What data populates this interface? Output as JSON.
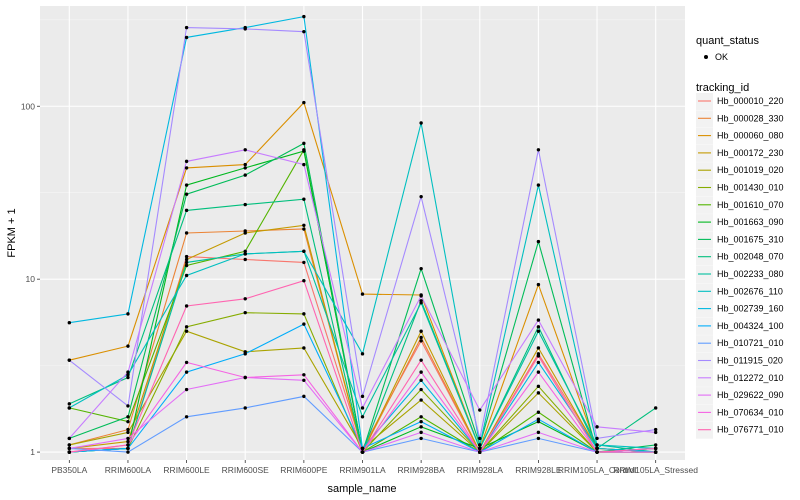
{
  "chart_data": {
    "type": "line",
    "title": "",
    "xlabel": "sample_name",
    "ylabel": "FPKM + 1",
    "y_scale": "log10",
    "ylim": [
      0.9,
      380
    ],
    "y_ticks": [
      1,
      10,
      100
    ],
    "y_tick_labels": [
      "1",
      "10",
      "100"
    ],
    "grid": true,
    "panel_background": "#ebebeb",
    "categories": [
      "PB350LA",
      "RRIM600LA",
      "RRIM600LE",
      "RRIM600SE",
      "RRIM600PE",
      "RRIM901LA",
      "RRIM928BA",
      "RRIM928LA",
      "RRIM928LE",
      "RRIM105LA_Control",
      "RRIM105LA_Stressed"
    ],
    "legend_position": "right",
    "shape_legend": {
      "title": "quant_status",
      "items": [
        "OK"
      ]
    },
    "legend_title": "tracking_id",
    "series": [
      {
        "name": "Hb_000010_220",
        "color": "#F8766D",
        "values": [
          1.05,
          1.05,
          13.5,
          13.0,
          12.5,
          1.05,
          4.4,
          1.0,
          3.7,
          1.05,
          1.0
        ]
      },
      {
        "name": "Hb_000028_330",
        "color": "#EB8335",
        "values": [
          1.1,
          1.35,
          18.5,
          19.0,
          19.5,
          1.0,
          4.6,
          1.0,
          3.6,
          1.0,
          1.05
        ]
      },
      {
        "name": "Hb_000060_080",
        "color": "#DA8F00",
        "values": [
          3.4,
          4.1,
          44.0,
          46.0,
          105.0,
          8.2,
          8.1,
          1.05,
          9.3,
          1.05,
          1.0
        ]
      },
      {
        "name": "Hb_000172_230",
        "color": "#C49A00",
        "values": [
          1.05,
          1.15,
          13.0,
          18.5,
          20.5,
          1.0,
          5.0,
          1.0,
          4.0,
          1.05,
          1.0
        ]
      },
      {
        "name": "Hb_001019_020",
        "color": "#AAA300",
        "values": [
          1.1,
          1.3,
          5.0,
          3.8,
          4.0,
          1.05,
          2.0,
          1.0,
          2.2,
          1.0,
          1.05
        ]
      },
      {
        "name": "Hb_001430_010",
        "color": "#86AC00",
        "values": [
          1.0,
          1.05,
          5.3,
          6.4,
          6.3,
          1.0,
          2.3,
          1.0,
          2.4,
          1.0,
          1.0
        ]
      },
      {
        "name": "Hb_001610_070",
        "color": "#53B400",
        "values": [
          1.8,
          1.5,
          12.0,
          14.5,
          56.0,
          1.0,
          1.6,
          1.0,
          1.7,
          1.0,
          1.0
        ]
      },
      {
        "name": "Hb_001663_090",
        "color": "#00B81F",
        "values": [
          1.0,
          1.05,
          35.0,
          44.0,
          55.0,
          1.0,
          1.4,
          1.05,
          1.5,
          1.0,
          1.0
        ]
      },
      {
        "name": "Hb_001675_310",
        "color": "#00BC59",
        "values": [
          1.2,
          1.6,
          31.0,
          40.0,
          61.0,
          1.0,
          11.5,
          1.1,
          16.5,
          1.0,
          1.1
        ]
      },
      {
        "name": "Hb_002048_070",
        "color": "#00BF7D",
        "values": [
          1.9,
          2.7,
          25.0,
          27.0,
          29.0,
          1.0,
          7.5,
          1.05,
          5.3,
          1.05,
          1.8
        ]
      },
      {
        "name": "Hb_002233_080",
        "color": "#00C09F",
        "values": [
          1.0,
          1.05,
          12.5,
          14.0,
          14.5,
          1.6,
          7.3,
          1.05,
          5.0,
          1.1,
          1.0
        ]
      },
      {
        "name": "Hb_002676_110",
        "color": "#00BFC0",
        "values": [
          1.8,
          2.8,
          10.5,
          14.0,
          14.5,
          3.7,
          80.0,
          1.1,
          35.0,
          1.1,
          1.05
        ]
      },
      {
        "name": "Hb_002739_160",
        "color": "#00B8E0",
        "values": [
          5.6,
          6.3,
          250.0,
          285.0,
          330.0,
          1.05,
          2.6,
          1.0,
          3.3,
          1.05,
          1.0
        ]
      },
      {
        "name": "Hb_004324_100",
        "color": "#00ADFA",
        "values": [
          1.0,
          1.05,
          2.9,
          3.7,
          5.5,
          1.05,
          1.5,
          1.0,
          1.55,
          1.0,
          1.05
        ]
      },
      {
        "name": "Hb_010721_010",
        "color": "#619CFF",
        "values": [
          1.05,
          1.0,
          1.6,
          1.8,
          2.1,
          1.0,
          1.2,
          1.0,
          1.2,
          1.0,
          1.05
        ]
      },
      {
        "name": "Hb_011915_020",
        "color": "#A58AFF",
        "values": [
          3.4,
          1.85,
          285.0,
          280.0,
          270.0,
          2.1,
          30.0,
          1.2,
          56.0,
          1.2,
          1.35
        ]
      },
      {
        "name": "Hb_012272_010",
        "color": "#C77CFF",
        "values": [
          1.2,
          2.9,
          48.0,
          56.0,
          46.0,
          1.8,
          8.0,
          1.75,
          5.8,
          1.4,
          1.3
        ]
      },
      {
        "name": "Hb_029622_090",
        "color": "#E36EF6",
        "values": [
          1.05,
          1.2,
          2.3,
          2.7,
          2.6,
          1.0,
          1.3,
          1.0,
          1.3,
          1.0,
          1.0
        ]
      },
      {
        "name": "Hb_070634_010",
        "color": "#F564E3",
        "values": [
          1.0,
          1.1,
          3.3,
          2.7,
          2.8,
          1.0,
          2.9,
          1.0,
          2.9,
          1.0,
          1.0
        ]
      },
      {
        "name": "Hb_076771_010",
        "color": "#FF64B0",
        "values": [
          1.0,
          1.1,
          7.0,
          7.7,
          9.8,
          1.0,
          3.4,
          1.0,
          3.6,
          1.0,
          1.05
        ]
      }
    ]
  }
}
